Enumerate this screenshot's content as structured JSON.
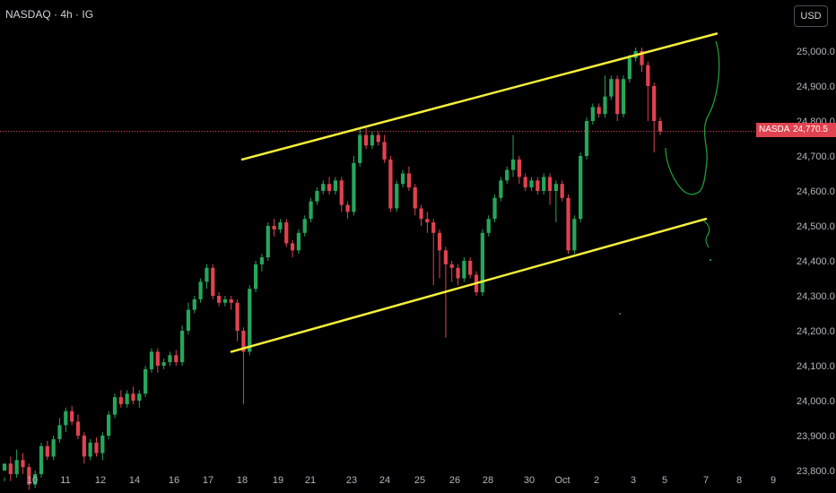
{
  "header": {
    "symbol": "NASDAQ · 4h · IG"
  },
  "currency_button": "USD",
  "colors": {
    "up": "#26a65b",
    "down": "#e0424f",
    "channel": "#f7f03a",
    "drawing": "#1f9a3a",
    "price_line": "#e0424f",
    "background": "#000000"
  },
  "last_price": {
    "name_tag": "NASDAQ",
    "value_tag": "24,770.5",
    "value": 24770.5
  },
  "chart_data": {
    "type": "candlestick",
    "x_tick_labels": [
      "10",
      "11",
      "12",
      "14",
      "16",
      "17",
      "18",
      "19",
      "21",
      "23",
      "24",
      "25",
      "26",
      "28",
      "30",
      "Oct",
      "2",
      "3",
      "5",
      "7",
      "8",
      "9"
    ],
    "y_tick_labels": [
      "25,000.0",
      "24,900.0",
      "24,800.0",
      "24,700.0",
      "24,600.0",
      "24,500.0",
      "24,400.0",
      "24,300.0",
      "24,200.0",
      "24,100.0",
      "24,000.0",
      "23,900.0",
      "23,800.0"
    ],
    "y_tick_values": [
      25000,
      24900,
      24800,
      24700,
      24600,
      24500,
      24400,
      24300,
      24200,
      24100,
      24000,
      23900,
      23800
    ],
    "ylim": [
      23730,
      25130
    ],
    "grid": false,
    "candles": [
      [
        23800,
        23820,
        23780,
        23770
      ],
      [
        23820,
        23790,
        23840,
        23770
      ],
      [
        23790,
        23830,
        23860,
        23780
      ],
      [
        23830,
        23810,
        23850,
        23790
      ],
      [
        23810,
        23760,
        23820,
        23745
      ],
      [
        23760,
        23790,
        23800,
        23750
      ],
      [
        23790,
        23870,
        23880,
        23780
      ],
      [
        23870,
        23840,
        23885,
        23830
      ],
      [
        23840,
        23890,
        23900,
        23830
      ],
      [
        23890,
        23930,
        23950,
        23880
      ],
      [
        23930,
        23970,
        23980,
        23910
      ],
      [
        23970,
        23940,
        23985,
        23930
      ],
      [
        23940,
        23900,
        23960,
        23890
      ],
      [
        23900,
        23840,
        23910,
        23820
      ],
      [
        23840,
        23880,
        23890,
        23830
      ],
      [
        23880,
        23850,
        23895,
        23840
      ],
      [
        23850,
        23900,
        23910,
        23830
      ],
      [
        23900,
        23960,
        23970,
        23890
      ],
      [
        23960,
        24010,
        24020,
        23950
      ],
      [
        24010,
        23990,
        24030,
        23980
      ],
      [
        23990,
        24020,
        24030,
        23980
      ],
      [
        24020,
        24000,
        24040,
        23990
      ],
      [
        24000,
        24020,
        24030,
        23980
      ],
      [
        24020,
        24090,
        24100,
        24010
      ],
      [
        24090,
        24140,
        24150,
        24080
      ],
      [
        24140,
        24100,
        24150,
        24080
      ],
      [
        24100,
        24110,
        24120,
        24090
      ],
      [
        24110,
        24130,
        24140,
        24100
      ],
      [
        24130,
        24110,
        24145,
        24100
      ],
      [
        24110,
        24200,
        24215,
        24100
      ],
      [
        24200,
        24260,
        24280,
        24190
      ],
      [
        24260,
        24290,
        24300,
        24250
      ],
      [
        24290,
        24340,
        24350,
        24280
      ],
      [
        24340,
        24380,
        24390,
        24320
      ],
      [
        24380,
        24300,
        24390,
        24290
      ],
      [
        24300,
        24280,
        24310,
        24270
      ],
      [
        24280,
        24290,
        24300,
        24270
      ],
      [
        24290,
        24280,
        24300,
        24260
      ],
      [
        24280,
        24200,
        24290,
        24170
      ],
      [
        24200,
        24140,
        24210,
        23990
      ],
      [
        24140,
        24320,
        24330,
        24130
      ],
      [
        24320,
        24390,
        24400,
        24310
      ],
      [
        24390,
        24410,
        24420,
        24370
      ],
      [
        24410,
        24500,
        24510,
        24400
      ],
      [
        24500,
        24490,
        24520,
        24470
      ],
      [
        24490,
        24510,
        24520,
        24480
      ],
      [
        24510,
        24450,
        24520,
        24440
      ],
      [
        24450,
        24430,
        24460,
        24410
      ],
      [
        24430,
        24480,
        24490,
        24420
      ],
      [
        24480,
        24520,
        24530,
        24470
      ],
      [
        24520,
        24570,
        24580,
        24510
      ],
      [
        24570,
        24600,
        24610,
        24560
      ],
      [
        24600,
        24620,
        24630,
        24590
      ],
      [
        24620,
        24600,
        24640,
        24590
      ],
      [
        24600,
        24630,
        24640,
        24590
      ],
      [
        24630,
        24560,
        24640,
        24540
      ],
      [
        24560,
        24540,
        24570,
        24520
      ],
      [
        24540,
        24680,
        24700,
        24530
      ],
      [
        24680,
        24760,
        24780,
        24670
      ],
      [
        24760,
        24730,
        24780,
        24720
      ],
      [
        24730,
        24760,
        24770,
        24720
      ],
      [
        24760,
        24740,
        24770,
        24730
      ],
      [
        24740,
        24690,
        24760,
        24680
      ],
      [
        24690,
        24550,
        24700,
        24540
      ],
      [
        24550,
        24620,
        24630,
        24540
      ],
      [
        24620,
        24650,
        24660,
        24610
      ],
      [
        24650,
        24610,
        24670,
        24600
      ],
      [
        24610,
        24550,
        24620,
        24530
      ],
      [
        24550,
        24520,
        24560,
        24500
      ],
      [
        24520,
        24510,
        24540,
        24480
      ],
      [
        24510,
        24480,
        24520,
        24330
      ],
      [
        24480,
        24430,
        24490,
        24350
      ],
      [
        24430,
        24390,
        24440,
        24180
      ],
      [
        24390,
        24380,
        24400,
        24340
      ],
      [
        24380,
        24350,
        24390,
        24330
      ],
      [
        24350,
        24400,
        24410,
        24340
      ],
      [
        24400,
        24360,
        24410,
        24350
      ],
      [
        24360,
        24310,
        24370,
        24300
      ],
      [
        24310,
        24480,
        24490,
        24300
      ],
      [
        24480,
        24520,
        24530,
        24470
      ],
      [
        24520,
        24580,
        24590,
        24510
      ],
      [
        24580,
        24630,
        24640,
        24570
      ],
      [
        24630,
        24660,
        24670,
        24620
      ],
      [
        24660,
        24690,
        24760,
        24640
      ],
      [
        24690,
        24640,
        24700,
        24620
      ],
      [
        24640,
        24610,
        24650,
        24600
      ],
      [
        24610,
        24630,
        24640,
        24600
      ],
      [
        24630,
        24600,
        24640,
        24590
      ],
      [
        24600,
        24640,
        24650,
        24590
      ],
      [
        24640,
        24600,
        24650,
        24560
      ],
      [
        24600,
        24620,
        24630,
        24510
      ],
      [
        24620,
        24580,
        24630,
        24570
      ],
      [
        24580,
        24430,
        24590,
        24420
      ],
      [
        24430,
        24520,
        24530,
        24420
      ],
      [
        24520,
        24700,
        24710,
        24510
      ],
      [
        24700,
        24800,
        24810,
        24690
      ],
      [
        24800,
        24840,
        24850,
        24790
      ],
      [
        24840,
        24820,
        24850,
        24810
      ],
      [
        24820,
        24870,
        24930,
        24810
      ],
      [
        24870,
        24920,
        24930,
        24860
      ],
      [
        24920,
        24820,
        24930,
        24800
      ],
      [
        24820,
        24920,
        24930,
        24810
      ],
      [
        24920,
        24980,
        24990,
        24910
      ],
      [
        24980,
        25000,
        25010,
        24970
      ],
      [
        25000,
        24960,
        25010,
        24940
      ],
      [
        24960,
        24900,
        24970,
        24800
      ],
      [
        24900,
        24800,
        24910,
        24710
      ],
      [
        24800,
        24770,
        24810,
        24760
      ]
    ],
    "channel_upper": [
      {
        "date": "18",
        "value": 24690
      },
      {
        "date": "7",
        "value": 25050
      }
    ],
    "channel_lower": [
      {
        "date": "18",
        "value": 24140
      },
      {
        "date": "7",
        "value": 24520
      }
    ]
  }
}
